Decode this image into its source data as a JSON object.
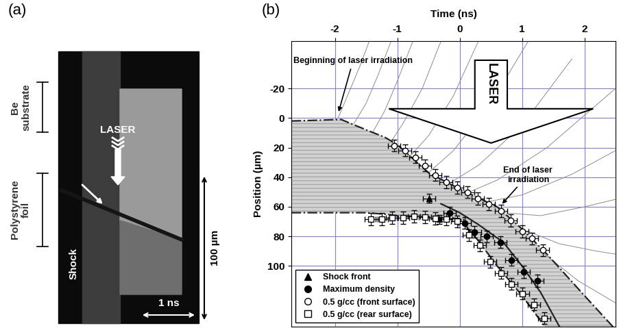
{
  "panel_a": {
    "label": "(a)",
    "texts": {
      "substrate": "Be\nsubstrate",
      "laser": "LASER",
      "foil": "Polystyrene\nfoil",
      "shock": "Shock",
      "scale_y": "100 µm",
      "scale_x": "1 ns"
    }
  },
  "chart_data": {
    "type": "scatter",
    "panel_label": "(b)",
    "x_label": "Time (ns)",
    "y_label": "Position (µm)",
    "xlim": [
      -2.7,
      2.5
    ],
    "xticks": [
      -2,
      -1,
      0,
      1,
      2
    ],
    "ylim": [
      141,
      -52
    ],
    "yticks": [
      -20,
      0,
      20,
      40,
      60,
      80,
      100
    ],
    "grid": true,
    "legend": "lower left",
    "big_arrow_label": "LASER",
    "annotations": [
      {
        "text": "Beginning of laser irradiation",
        "time": -1.95,
        "position": -3
      },
      {
        "text": "End of laser\nirradiation",
        "time": 0.66,
        "position": 59
      }
    ],
    "series": [
      {
        "name": "Shock front",
        "marker": "triangle",
        "color": "#000000",
        "x": [
          -0.49,
          -0.32
        ],
        "values": [
          54.4,
          68.4
        ],
        "x_error": 0.1,
        "y_error": 3
      },
      {
        "name": "Maximum density",
        "marker": "circle",
        "color": "#000000",
        "x": [
          -0.16,
          0.08,
          0.24,
          0.43,
          0.65,
          0.83,
          1.03,
          1.25
        ],
        "values": [
          64,
          71,
          77,
          80,
          84,
          96,
          104,
          110
        ],
        "x_error": 0.1,
        "y_error": 4
      },
      {
        "name": "0.5 g/cc (front surface)",
        "marker": "open_circle",
        "color": "#000000",
        "x": [
          -1.05,
          -0.88,
          -0.71,
          -0.56,
          -0.39,
          -0.22,
          -0.04,
          0.13,
          0.29,
          0.47,
          0.66,
          0.82,
          1.0,
          1.16,
          1.33
        ],
        "values": [
          18.6,
          21.9,
          26.5,
          32.1,
          38.6,
          43.3,
          47.0,
          50.2,
          54.4,
          58.1,
          62.8,
          69.3,
          76.7,
          81.4,
          89.3
        ],
        "x_error": 0.1,
        "y_error": 4
      },
      {
        "name": "0.5 g/cc (rear surface)",
        "marker": "open_square",
        "color": "#000000",
        "x": [
          -1.42,
          -1.25,
          -1.08,
          -0.91,
          -0.73,
          -0.56,
          -0.39,
          -0.22,
          -0.04,
          0.15,
          0.32,
          0.49,
          0.66,
          0.83,
          1.01,
          1.19,
          1.36
        ],
        "values": [
          68.4,
          68.4,
          67.4,
          67.4,
          66.5,
          67.0,
          67.9,
          68.4,
          69.8,
          79.1,
          86.0,
          97.2,
          104.7,
          112.1,
          118.6,
          126.0,
          135.3
        ],
        "x_error": 0.1,
        "y_error": 4
      }
    ],
    "curves": [
      {
        "line_style": "dashdot",
        "color": "#222222",
        "x": [
          -2.7,
          -1.9,
          -1.5,
          -1.2,
          -1.0,
          -0.5,
          0.0,
          0.3,
          0.6,
          1.0,
          1.4,
          2.0,
          2.5
        ],
        "values": [
          2,
          1,
          8,
          13,
          18,
          37,
          48,
          54,
          60,
          75,
          92,
          120,
          143
        ]
      },
      {
        "line_style": "dashdot",
        "color": "#222222",
        "x": [
          -2.7,
          -1.9,
          -1.5,
          -1.2,
          -1.0,
          -0.5,
          0.0,
          0.3,
          0.6,
          1.0,
          1.4
        ],
        "values": [
          64,
          64,
          64,
          65,
          66,
          67,
          68,
          83,
          100,
          120,
          143
        ]
      },
      {
        "line_style": "solid",
        "color": "#222222",
        "x": [
          -0.3,
          0.0,
          0.3,
          0.7,
          1.0,
          1.3,
          1.6
        ],
        "values": [
          58,
          64,
          72,
          84,
          100,
          118,
          141
        ]
      }
    ],
    "flow_lines": [
      {
        "x": [
          -1.95,
          -1.8,
          -1.6,
          -1.45
        ],
        "values": [
          0,
          -15,
          -35,
          -52
        ]
      },
      {
        "x": [
          -1.7,
          -1.5,
          -1.3,
          -1.1
        ],
        "values": [
          4,
          -10,
          -30,
          -52
        ]
      },
      {
        "x": [
          -1.4,
          -1.2,
          -1.0,
          -0.75
        ],
        "values": [
          10,
          -5,
          -25,
          -52
        ]
      },
      {
        "x": [
          -1.1,
          -0.9,
          -0.6,
          -0.3
        ],
        "values": [
          16,
          3,
          -20,
          -52
        ]
      },
      {
        "x": [
          -0.8,
          -0.5,
          -0.1,
          0.3
        ],
        "values": [
          26,
          12,
          -15,
          -52
        ]
      },
      {
        "x": [
          -0.5,
          -0.1,
          0.5,
          1.1
        ],
        "values": [
          37,
          22,
          -10,
          -52
        ]
      },
      {
        "x": [
          -0.2,
          0.3,
          1.0,
          1.8
        ],
        "values": [
          45,
          32,
          5,
          -40
        ]
      },
      {
        "x": [
          0.1,
          0.6,
          1.4,
          2.5
        ],
        "values": [
          51,
          42,
          20,
          -20
        ]
      },
      {
        "x": [
          0.4,
          1.0,
          1.8,
          2.5
        ],
        "values": [
          57,
          52,
          38,
          22
        ]
      },
      {
        "x": [
          0.7,
          1.3,
          2.0,
          2.5
        ],
        "values": [
          64,
          66,
          60,
          55
        ]
      },
      {
        "x": [
          1.0,
          1.6,
          2.2,
          2.5
        ],
        "values": [
          75,
          85,
          90,
          92
        ]
      },
      {
        "x": [
          1.3,
          1.9,
          2.5
        ],
        "values": [
          90,
          110,
          125
        ]
      }
    ]
  }
}
